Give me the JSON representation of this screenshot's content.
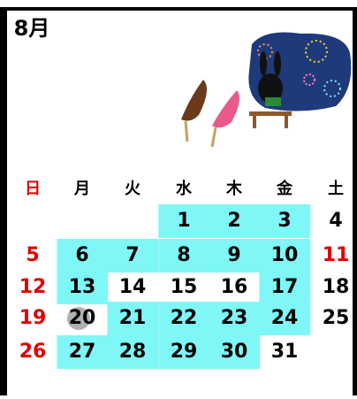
{
  "header": {
    "title": "8月"
  },
  "calendar": {
    "weekdays": [
      "日",
      "月",
      "火",
      "水",
      "木",
      "金",
      "土"
    ],
    "weeks": [
      [
        null,
        null,
        null,
        {
          "day": 1,
          "highlight": true
        },
        {
          "day": 2,
          "highlight": true
        },
        {
          "day": 3,
          "highlight": true
        },
        {
          "day": 4
        }
      ],
      [
        {
          "day": 5,
          "holiday": true
        },
        {
          "day": 6,
          "highlight": true
        },
        {
          "day": 7,
          "highlight": true
        },
        {
          "day": 8,
          "highlight": true
        },
        {
          "day": 9,
          "highlight": true
        },
        {
          "day": 10,
          "highlight": true
        },
        {
          "day": 11,
          "holiday": true
        }
      ],
      [
        {
          "day": 12,
          "holiday": true
        },
        {
          "day": 13,
          "highlight": true
        },
        {
          "day": 14
        },
        {
          "day": 15
        },
        {
          "day": 16
        },
        {
          "day": 17,
          "highlight": true
        },
        {
          "day": 18
        }
      ],
      [
        {
          "day": 19,
          "holiday": true
        },
        {
          "day": 20,
          "circled": true
        },
        {
          "day": 21,
          "highlight": true
        },
        {
          "day": 22,
          "highlight": true
        },
        {
          "day": 23,
          "highlight": true
        },
        {
          "day": 24,
          "highlight": true
        },
        {
          "day": 25
        }
      ],
      [
        {
          "day": 26,
          "holiday": true
        },
        {
          "day": 27,
          "highlight": true
        },
        {
          "day": 28,
          "highlight": true
        },
        {
          "day": 29,
          "highlight": true
        },
        {
          "day": 30,
          "highlight": true
        },
        {
          "day": 31
        },
        null
      ]
    ]
  }
}
